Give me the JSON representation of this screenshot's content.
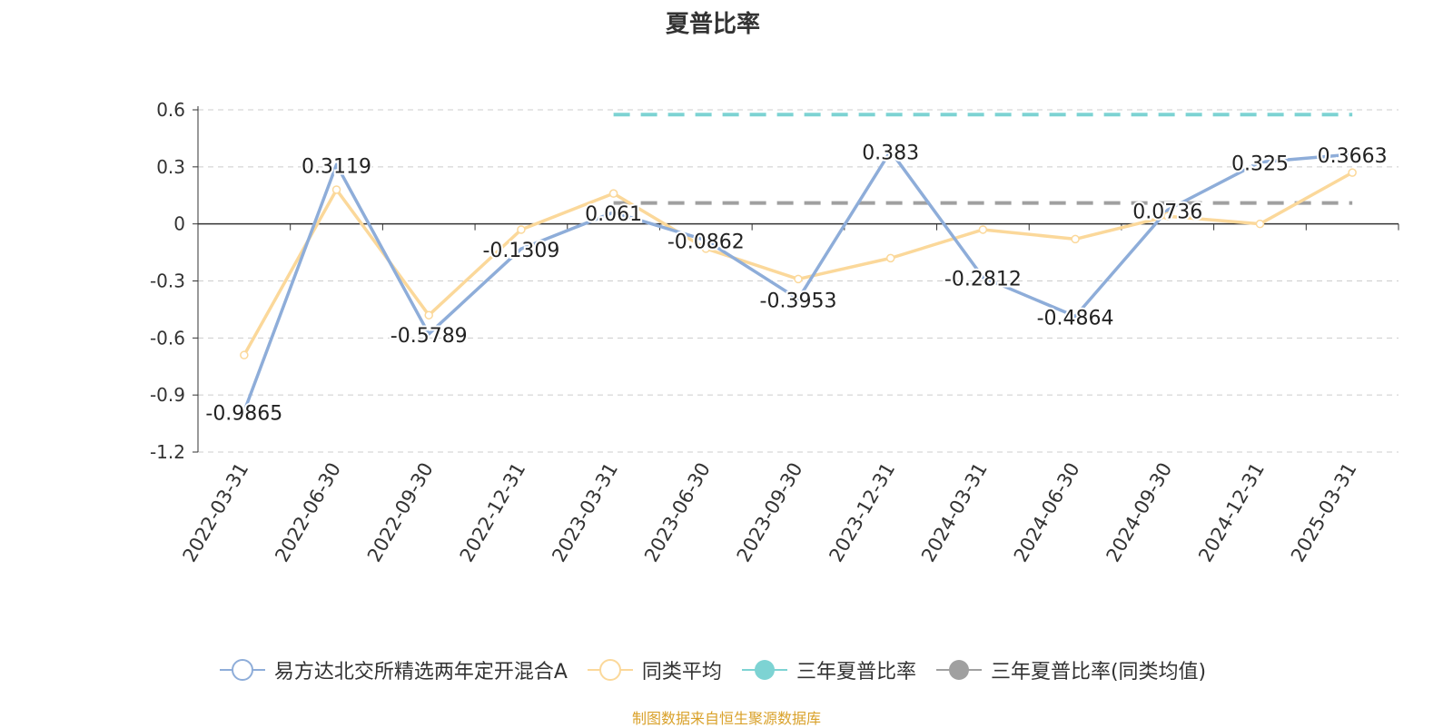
{
  "chart_data": {
    "type": "line",
    "title": "夏普比率",
    "x": [
      "2022-03-31",
      "2022-06-30",
      "2022-09-30",
      "2022-12-31",
      "2023-03-31",
      "2023-06-30",
      "2023-09-30",
      "2023-12-31",
      "2024-03-31",
      "2024-06-30",
      "2024-09-30",
      "2024-12-31",
      "2025-03-31"
    ],
    "yticks": [
      "0.6",
      "0.3",
      "0",
      "-0.3",
      "-0.6",
      "-0.9",
      "-1.2"
    ],
    "ylim": [
      -1.2,
      0.6
    ],
    "grid": true,
    "legend_position": "bottom",
    "series": [
      {
        "name": "易方达北交所精选两年定开混合A",
        "color": "#8eadd9",
        "values": [
          -0.9865,
          0.3119,
          -0.5789,
          -0.1309,
          0.061,
          -0.0862,
          -0.3953,
          0.383,
          -0.2812,
          -0.4864,
          0.0736,
          0.325,
          0.3663
        ],
        "labels": [
          "-0.9865",
          "0.3119",
          "-0.5789",
          "-0.1309",
          "0.061",
          "-0.0862",
          "-0.3953",
          "0.383",
          "-0.2812",
          "-0.4864",
          "0.0736",
          "0.325",
          "0.3663"
        ]
      },
      {
        "name": "同类平均",
        "color": "#fbd89a",
        "values": [
          -0.69,
          0.18,
          -0.48,
          -0.03,
          0.16,
          -0.13,
          -0.29,
          -0.18,
          -0.03,
          -0.08,
          0.04,
          0.0,
          0.27
        ]
      },
      {
        "name": "三年夏普比率",
        "color": "#7dd3d3",
        "dashed": true,
        "x_range": [
          "2023-03-31",
          "2025-03-31"
        ],
        "value": 0.575
      },
      {
        "name": "三年夏普比率(同类均值)",
        "color": "#a0a0a0",
        "dashed": true,
        "x_range": [
          "2023-03-31",
          "2025-03-31"
        ],
        "value": 0.11
      }
    ]
  },
  "source": "制图数据来自恒生聚源数据库"
}
